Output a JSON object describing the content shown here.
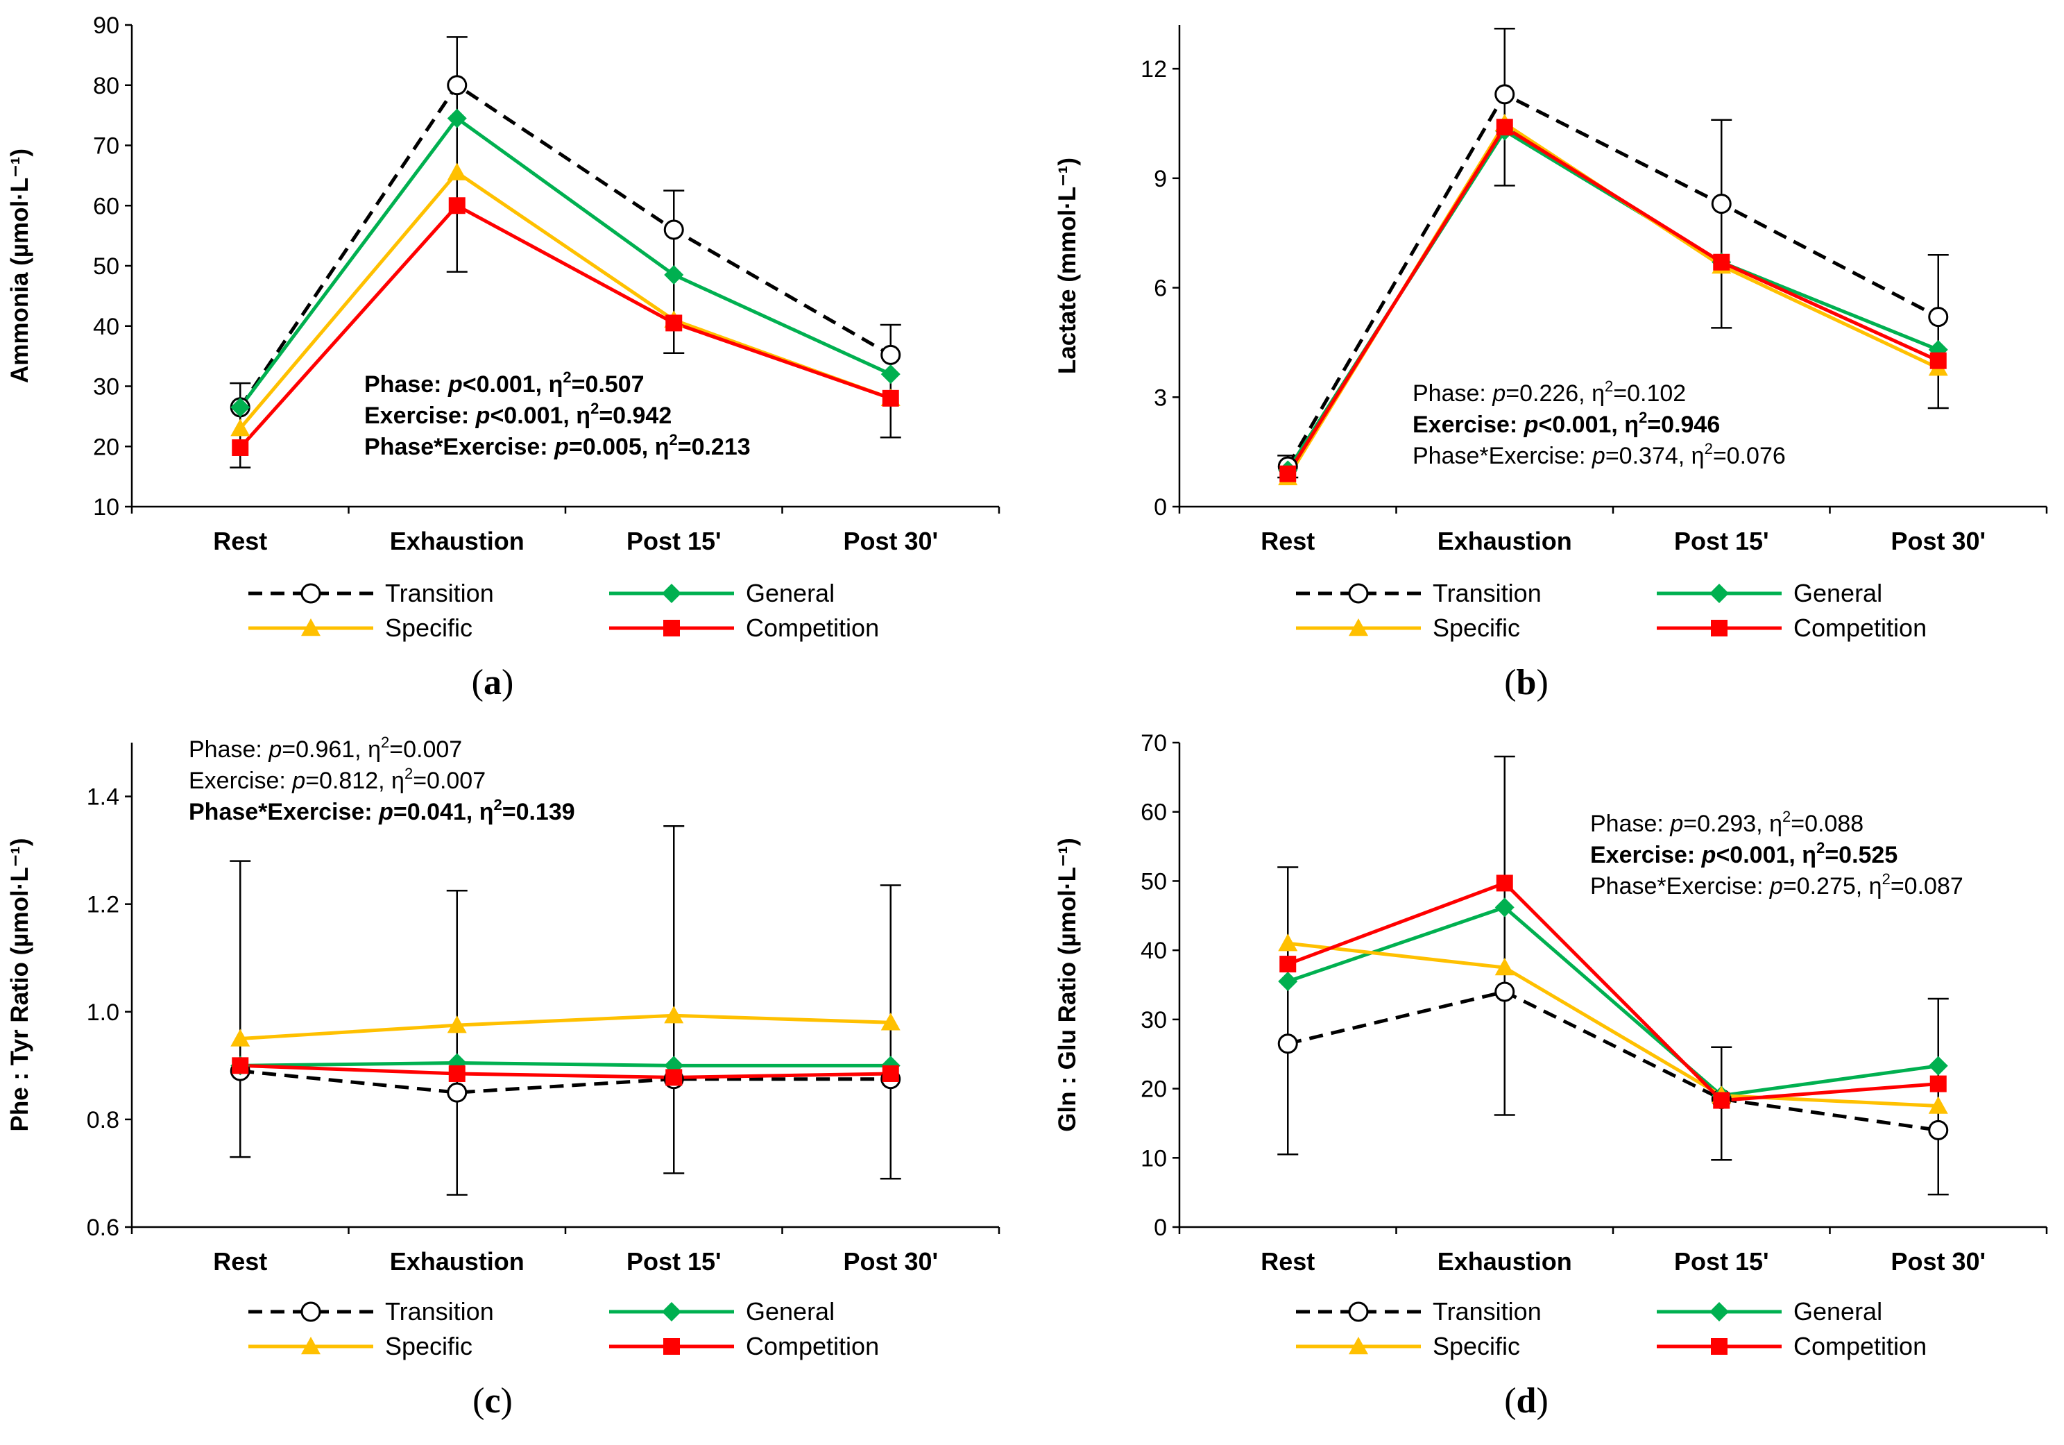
{
  "legend": {
    "transition": "Transition",
    "general": "General",
    "specific": "Specific",
    "competition": "Competition"
  },
  "colors": {
    "transition": "#000000",
    "general": "#00b050",
    "specific": "#ffc000",
    "competition": "#ff0000"
  },
  "chart_data": [
    {
      "type": "line",
      "panel": "a",
      "ylabel": "Ammonia (µmol·L⁻¹)",
      "ylim": [
        10,
        90
      ],
      "yticks": [
        10,
        20,
        30,
        40,
        50,
        60,
        70,
        80,
        90
      ],
      "categories": [
        "Rest",
        "Exhaustion",
        "Post 15'",
        "Post 30'"
      ],
      "series": [
        {
          "name": "Transition",
          "values": [
            26.5,
            80,
            56,
            35.2
          ],
          "err_up": [
            30.5,
            88,
            62.5,
            40.2
          ],
          "err_low": [
            16.5,
            49,
            35.5,
            21.5
          ]
        },
        {
          "name": "General",
          "values": [
            26.5,
            74.5,
            48.5,
            32
          ]
        },
        {
          "name": "Specific",
          "values": [
            23,
            65.5,
            41,
            28
          ]
        },
        {
          "name": "Competition",
          "values": [
            19.8,
            60,
            40.5,
            28
          ]
        }
      ],
      "stats": [
        {
          "label": "Phase: ",
          "p": "<0.001",
          "eta": "=0.507",
          "bold": true
        },
        {
          "label": "Exercise: ",
          "p": "<0.001",
          "eta": "=0.942",
          "bold": true
        },
        {
          "label": "Phase*Exercise: ",
          "p": "=0.005",
          "eta": "=0.213",
          "bold": true
        }
      ]
    },
    {
      "type": "line",
      "panel": "b",
      "ylabel": "Lactate (mmol·L⁻¹)",
      "ylim": [
        0,
        13.2
      ],
      "yticks": [
        0,
        3,
        6,
        9,
        12
      ],
      "categories": [
        "Rest",
        "Exhaustion",
        "Post 15'",
        "Post 30'"
      ],
      "series": [
        {
          "name": "Transition",
          "values": [
            1.1,
            11.3,
            8.3,
            5.2
          ],
          "err_up": [
            1.4,
            13.1,
            10.6,
            6.9
          ],
          "err_low": [
            0.8,
            8.8,
            4.9,
            2.7
          ]
        },
        {
          "name": "General",
          "values": [
            1.0,
            10.3,
            6.7,
            4.3
          ]
        },
        {
          "name": "Specific",
          "values": [
            0.8,
            10.5,
            6.6,
            3.8
          ]
        },
        {
          "name": "Competition",
          "values": [
            0.9,
            10.4,
            6.7,
            4.0
          ]
        }
      ],
      "stats": [
        {
          "label": "Phase: ",
          "p": "=0.226",
          "eta": "=0.102",
          "bold": false
        },
        {
          "label": "Exercise: ",
          "p": "<0.001",
          "eta": "=0.946",
          "bold": true
        },
        {
          "label": "Phase*Exercise: ",
          "p": "=0.374",
          "eta": "=0.076",
          "bold": false
        }
      ]
    },
    {
      "type": "line",
      "panel": "c",
      "ylabel": "Phe : Tyr Ratio (µmol·L⁻¹)",
      "ylim": [
        0.6,
        1.5
      ],
      "yticks": [
        0.6,
        0.8,
        1.0,
        1.2,
        1.4
      ],
      "categories": [
        "Rest",
        "Exhaustion",
        "Post 15'",
        "Post 30'"
      ],
      "series": [
        {
          "name": "Transition",
          "values": [
            0.89,
            0.85,
            0.875,
            0.875
          ],
          "err_up": [
            1.28,
            1.225,
            1.345,
            1.235
          ],
          "err_low": [
            0.73,
            0.66,
            0.7,
            0.69
          ]
        },
        {
          "name": "General",
          "values": [
            0.9,
            0.905,
            0.9,
            0.9
          ]
        },
        {
          "name": "Specific",
          "values": [
            0.95,
            0.975,
            0.993,
            0.98
          ]
        },
        {
          "name": "Competition",
          "values": [
            0.9,
            0.885,
            0.878,
            0.885
          ]
        }
      ],
      "stats": [
        {
          "label": "Phase: ",
          "p": "=0.961",
          "eta": "=0.007",
          "bold": false
        },
        {
          "label": "Exercise: ",
          "p": "=0.812",
          "eta": "=0.007",
          "bold": false
        },
        {
          "label": "Phase*Exercise: ",
          "p": "=0.041",
          "eta": "=0.139",
          "bold": true
        }
      ]
    },
    {
      "type": "line",
      "panel": "d",
      "ylabel": "Gln : Glu Ratio (µmol·L⁻¹)",
      "ylim": [
        0,
        70
      ],
      "yticks": [
        0,
        10,
        20,
        30,
        40,
        50,
        60,
        70
      ],
      "categories": [
        "Rest",
        "Exhaustion",
        "Post 15'",
        "Post 30'"
      ],
      "series": [
        {
          "name": "Transition",
          "values": [
            26.5,
            34,
            18.5,
            14
          ],
          "err_up": [
            52,
            68,
            26,
            33
          ],
          "err_low": [
            10.5,
            16.2,
            9.7,
            4.7
          ]
        },
        {
          "name": "General",
          "values": [
            35.5,
            46.2,
            19,
            23.3
          ]
        },
        {
          "name": "Specific",
          "values": [
            41,
            37.5,
            19,
            17.5
          ]
        },
        {
          "name": "Competition",
          "values": [
            38,
            49.7,
            18.3,
            20.7
          ]
        }
      ],
      "stats": [
        {
          "label": "Phase: ",
          "p": "=0.293",
          "eta": "=0.088",
          "bold": false
        },
        {
          "label": "Exercise: ",
          "p": "<0.001",
          "eta": "=0.525",
          "bold": true
        },
        {
          "label": "Phase*Exercise: ",
          "p": "=0.275",
          "eta": "=0.087",
          "bold": false
        }
      ]
    }
  ]
}
